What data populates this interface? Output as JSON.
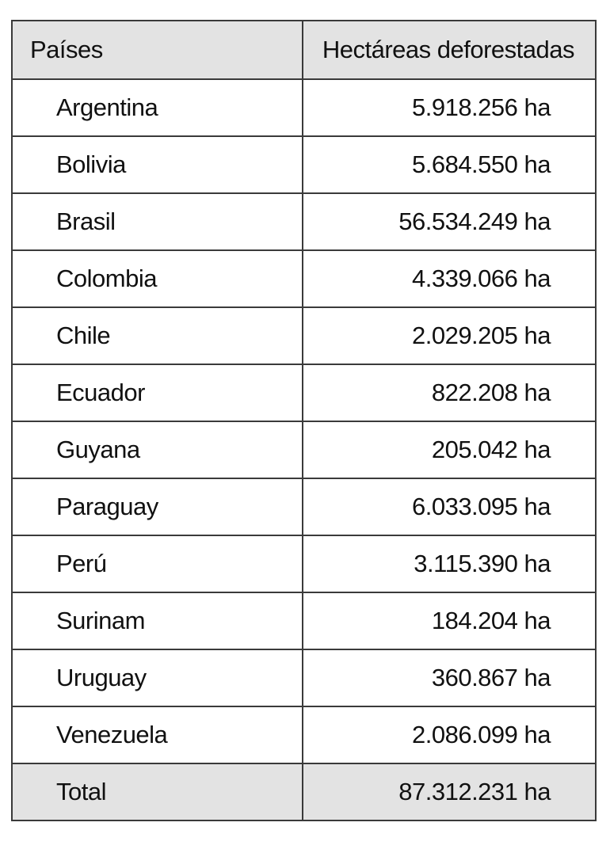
{
  "table": {
    "headers": [
      "Países",
      "Hectáreas deforestadas"
    ],
    "rows": [
      [
        "Argentina",
        "5.918.256 ha"
      ],
      [
        "Bolivia",
        "5.684.550 ha"
      ],
      [
        "Brasil",
        "56.534.249 ha"
      ],
      [
        "Colombia",
        "4.339.066 ha"
      ],
      [
        "Chile",
        "2.029.205 ha"
      ],
      [
        "Ecuador",
        "822.208 ha"
      ],
      [
        "Guyana",
        "205.042 ha"
      ],
      [
        "Paraguay",
        "6.033.095 ha"
      ],
      [
        "Perú",
        "3.115.390 ha"
      ],
      [
        "Surinam",
        "184.204 ha"
      ],
      [
        "Uruguay",
        "360.867 ha"
      ],
      [
        "Venezuela",
        "2.086.099 ha"
      ]
    ],
    "total": [
      "Total",
      "87.312.231 ha"
    ]
  },
  "colors": {
    "header_bg": "#e3e3e3",
    "border": "#3a3a3a",
    "text": "#111111"
  }
}
